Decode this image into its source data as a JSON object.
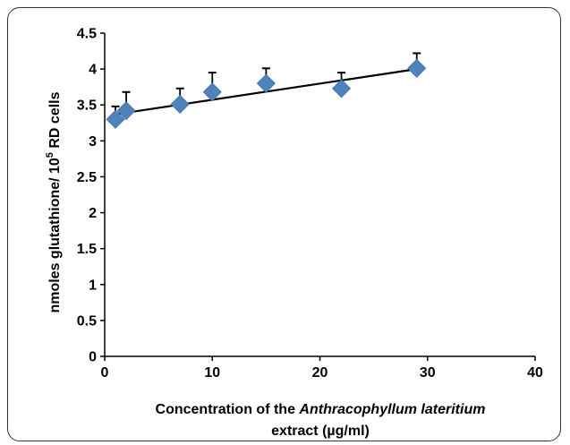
{
  "chart_data": {
    "type": "scatter",
    "x": [
      1,
      2,
      7,
      10,
      15,
      22,
      29
    ],
    "y": [
      3.3,
      3.42,
      3.51,
      3.68,
      3.8,
      3.73,
      4.01
    ],
    "error_upper": [
      0.18,
      0.26,
      0.22,
      0.27,
      0.21,
      0.22,
      0.21
    ],
    "trendline": {
      "type": "linear",
      "x": [
        1,
        29
      ],
      "y": [
        3.37,
        4.0
      ]
    },
    "xlim": [
      0,
      40
    ],
    "ylim": [
      0,
      4.5
    ],
    "x_ticks": [
      "0",
      "10",
      "20",
      "30",
      "40"
    ],
    "y_ticks": [
      "0",
      "0.5",
      "1",
      "1.5",
      "2",
      "2.5",
      "3",
      "3.5",
      "4",
      "4.5"
    ],
    "xlabel": {
      "prefix": "Concentration  of  the ",
      "species": "Anthracophyllum lateritium",
      "line2": "extract (µg/ml)"
    },
    "ylabel": {
      "main": "nmoles  glutathione/ 10",
      "superscript": "5",
      "suffix": " RD cells"
    },
    "grid": false,
    "marker_color": "#4f81bd",
    "line_color": "#000000"
  }
}
